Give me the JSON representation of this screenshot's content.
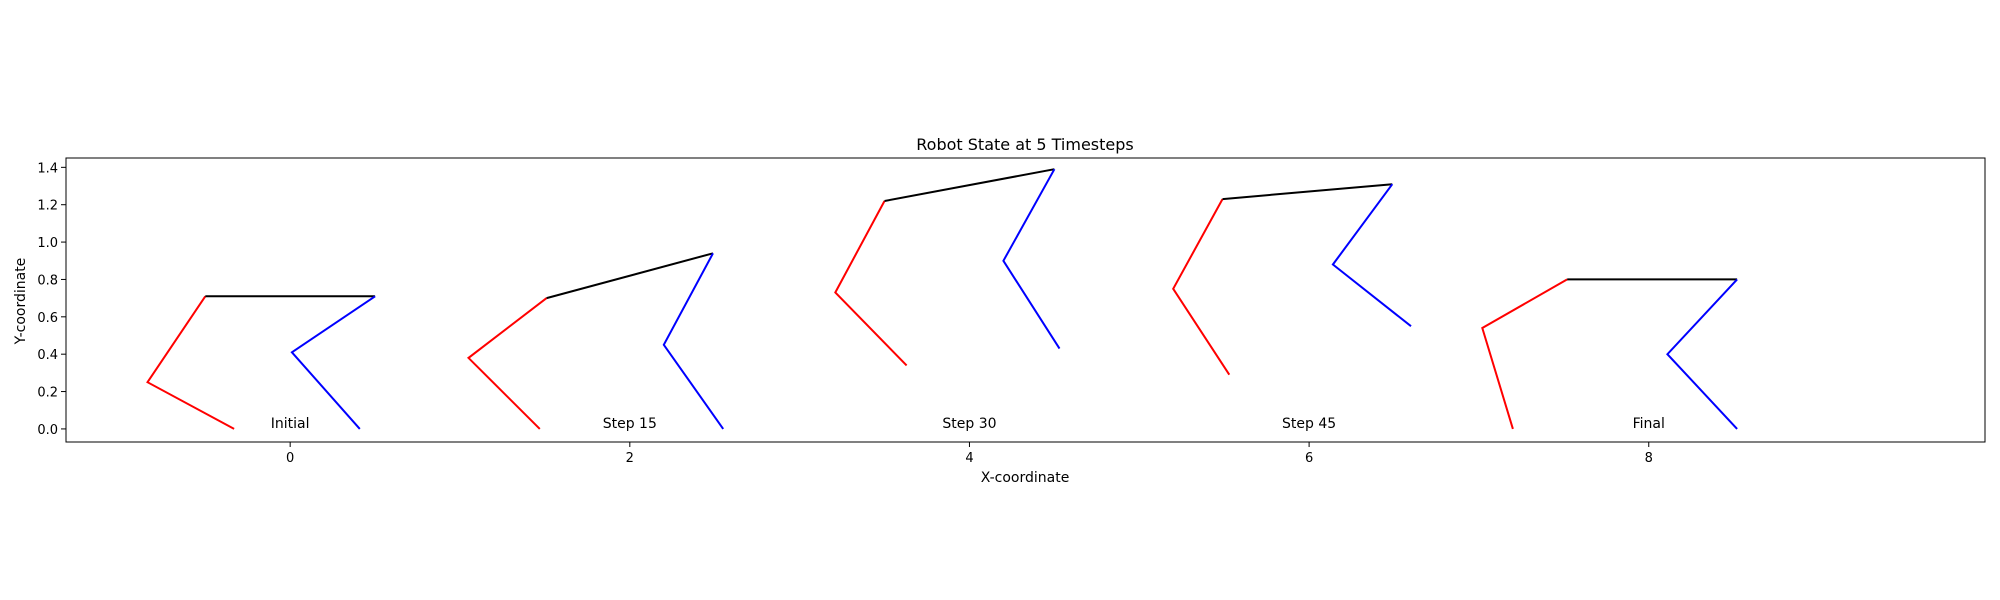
{
  "chart_data": {
    "type": "line",
    "title": "Robot State at 5 Timesteps",
    "xlabel": "X-coordinate",
    "ylabel": "Y-coordinate",
    "xlim": [
      -1.32,
      9.98
    ],
    "ylim": [
      -0.07,
      1.45
    ],
    "xticks": [
      0,
      2,
      4,
      6,
      8
    ],
    "yticks": [
      0.0,
      0.2,
      0.4,
      0.6,
      0.8,
      1.0,
      1.2,
      1.4
    ],
    "grid": false,
    "colors": {
      "left_leg": "#ff0000",
      "body": "#000000",
      "right_leg": "#0000ff"
    },
    "states": [
      {
        "label": "Initial",
        "label_pos": [
          0.0,
          0.0
        ],
        "left_leg": [
          [
            -0.33,
            0.0
          ],
          [
            -0.84,
            0.25
          ],
          [
            -0.5,
            0.71
          ]
        ],
        "body": [
          [
            -0.5,
            0.71
          ],
          [
            0.5,
            0.71
          ]
        ],
        "right_leg": [
          [
            0.5,
            0.71
          ],
          [
            0.01,
            0.41
          ],
          [
            0.41,
            0.0
          ]
        ]
      },
      {
        "label": "Step 15",
        "label_pos": [
          2.0,
          0.0
        ],
        "left_leg": [
          [
            1.47,
            0.0
          ],
          [
            1.05,
            0.38
          ],
          [
            1.51,
            0.7
          ]
        ],
        "body": [
          [
            1.51,
            0.7
          ],
          [
            2.49,
            0.94
          ]
        ],
        "right_leg": [
          [
            2.49,
            0.94
          ],
          [
            2.2,
            0.45
          ],
          [
            2.55,
            0.0
          ]
        ]
      },
      {
        "label": "Step 30",
        "label_pos": [
          4.0,
          0.0
        ],
        "left_leg": [
          [
            3.63,
            0.34
          ],
          [
            3.21,
            0.73
          ],
          [
            3.5,
            1.22
          ]
        ],
        "body": [
          [
            3.5,
            1.22
          ],
          [
            4.5,
            1.39
          ]
        ],
        "right_leg": [
          [
            4.5,
            1.39
          ],
          [
            4.2,
            0.9
          ],
          [
            4.53,
            0.43
          ]
        ]
      },
      {
        "label": "Step 45",
        "label_pos": [
          6.0,
          0.0
        ],
        "left_leg": [
          [
            5.53,
            0.29
          ],
          [
            5.2,
            0.75
          ],
          [
            5.49,
            1.23
          ]
        ],
        "body": [
          [
            5.49,
            1.23
          ],
          [
            6.49,
            1.31
          ]
        ],
        "right_leg": [
          [
            6.49,
            1.31
          ],
          [
            6.14,
            0.88
          ],
          [
            6.6,
            0.55
          ]
        ]
      },
      {
        "label": "Final",
        "label_pos": [
          8.0,
          0.0
        ],
        "left_leg": [
          [
            7.2,
            0.0
          ],
          [
            7.02,
            0.54
          ],
          [
            7.52,
            0.8
          ]
        ],
        "body": [
          [
            7.52,
            0.8
          ],
          [
            8.52,
            0.8
          ]
        ],
        "right_leg": [
          [
            8.52,
            0.8
          ],
          [
            8.11,
            0.4
          ],
          [
            8.52,
            0.0
          ]
        ]
      }
    ]
  }
}
